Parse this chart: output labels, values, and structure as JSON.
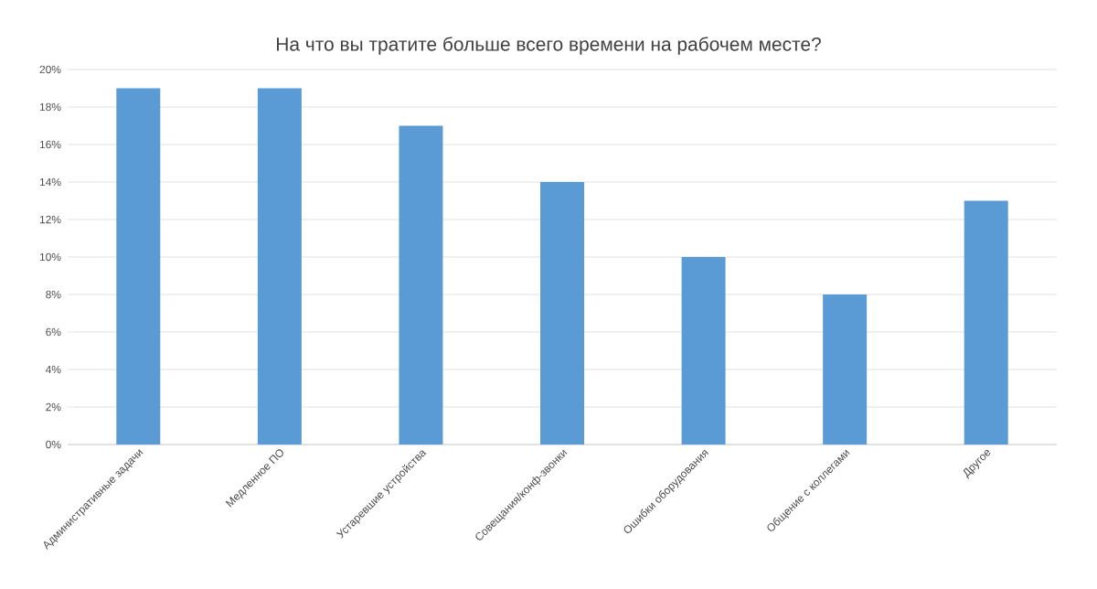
{
  "chart_data": {
    "type": "bar",
    "title": "На что вы тратите больше всего времени на рабочем месте?",
    "categories": [
      "Административные задачи",
      "Медленное ПО",
      "Устаревшие устройства",
      "Совещания/конф-звонки",
      "Ошибки оборудования",
      "Общение с коллегами",
      "Другое"
    ],
    "values": [
      19,
      19,
      17,
      14,
      10,
      8,
      13
    ],
    "color": "#5b9bd5",
    "ylim": [
      0,
      20
    ],
    "yticks": [
      {
        "value": 0,
        "label": "0%"
      },
      {
        "value": 2,
        "label": "2%"
      },
      {
        "value": 4,
        "label": "4%"
      },
      {
        "value": 6,
        "label": "6%"
      },
      {
        "value": 8,
        "label": "8%"
      },
      {
        "value": 10,
        "label": "10%"
      },
      {
        "value": 12,
        "label": "12%"
      },
      {
        "value": 14,
        "label": "14%"
      },
      {
        "value": 16,
        "label": "16%"
      },
      {
        "value": 18,
        "label": "18%"
      },
      {
        "value": 20,
        "label": "20%"
      }
    ],
    "grid": "y"
  }
}
